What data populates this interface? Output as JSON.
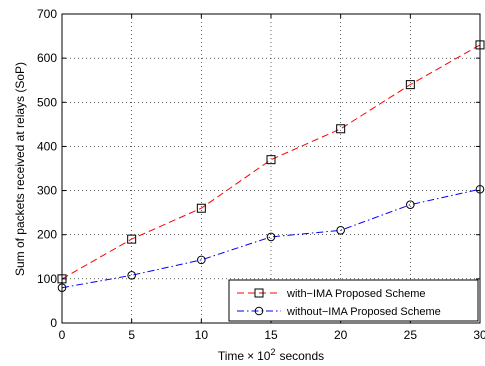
{
  "chart_data": {
    "type": "line",
    "title": "",
    "xlabel_prefix": "Time",
    "xlabel_times": "×",
    "xlabel_base": "10",
    "xlabel_exp": "2",
    "xlabel_suffix": "seconds",
    "ylabel": "Sum of packets received at relays (SoP)",
    "xlim": [
      0,
      30
    ],
    "ylim": [
      0,
      700
    ],
    "x_ticks": [
      0,
      5,
      10,
      15,
      20,
      25,
      30
    ],
    "y_ticks": [
      0,
      100,
      200,
      300,
      400,
      500,
      600,
      700
    ],
    "grid": true,
    "legend_position": "bottom-right",
    "x": [
      0,
      5,
      10,
      15,
      20,
      25,
      30
    ],
    "series": [
      {
        "name": "with−IMA Proposed Scheme",
        "values": [
          100,
          190,
          260,
          370,
          440,
          540,
          630
        ],
        "color": "#ff0000",
        "line_style": "dashed",
        "marker": "square"
      },
      {
        "name": "without−IMA Proposed Scheme",
        "values": [
          80,
          108,
          143,
          195,
          210,
          268,
          303
        ],
        "color": "#0000ff",
        "line_style": "dash-dot",
        "marker": "circle"
      }
    ]
  }
}
